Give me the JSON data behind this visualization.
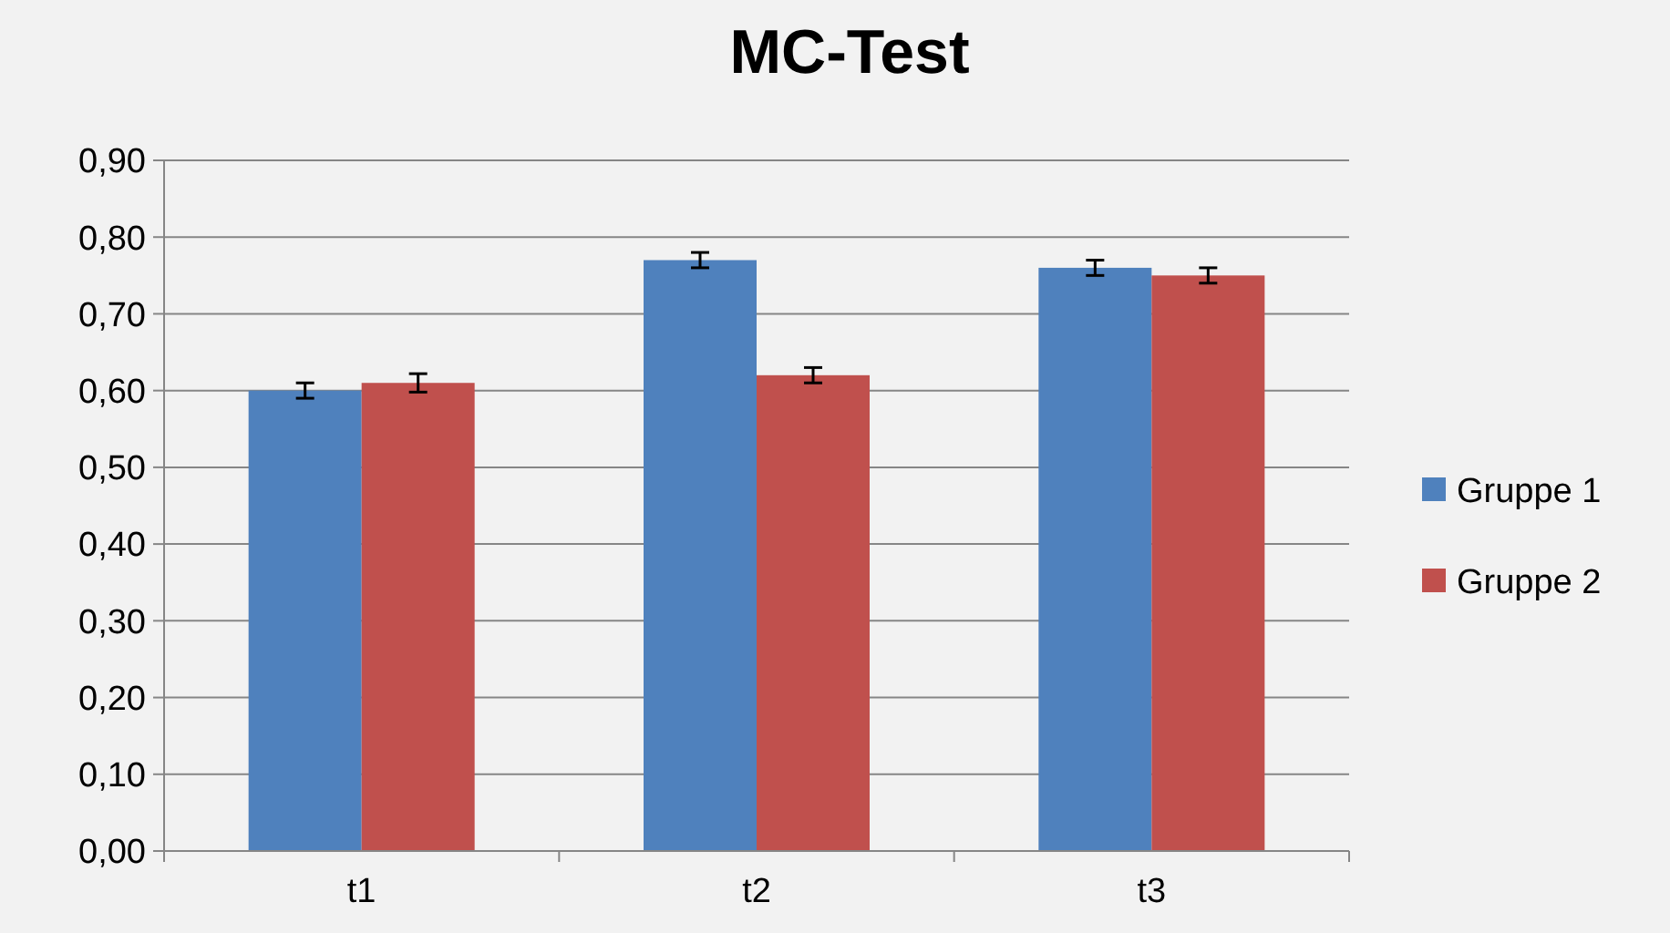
{
  "chart_data": {
    "type": "bar",
    "title": "MC-Test",
    "categories": [
      "t1",
      "t2",
      "t3"
    ],
    "series": [
      {
        "name": "Gruppe 1",
        "color": "#4f81bd",
        "values": [
          0.6,
          0.77,
          0.76
        ],
        "errors": [
          0.01,
          0.01,
          0.01
        ]
      },
      {
        "name": "Gruppe 2",
        "color": "#c0504d",
        "values": [
          0.61,
          0.62,
          0.75
        ],
        "errors": [
          0.012,
          0.01,
          0.01
        ]
      }
    ],
    "ylim": [
      0,
      0.9
    ],
    "yticks": [
      {
        "value": 0,
        "label": "0,00"
      },
      {
        "value": 0.1,
        "label": "0,10"
      },
      {
        "value": 0.2,
        "label": "0,20"
      },
      {
        "value": 0.3,
        "label": "0,30"
      },
      {
        "value": 0.4,
        "label": "0,40"
      },
      {
        "value": 0.5,
        "label": "0,50"
      },
      {
        "value": 0.6,
        "label": "0,60"
      },
      {
        "value": 0.7,
        "label": "0,70"
      },
      {
        "value": 0.8,
        "label": "0,80"
      },
      {
        "value": 0.9,
        "label": "0,90"
      }
    ],
    "grid": "y",
    "legend": "right"
  }
}
